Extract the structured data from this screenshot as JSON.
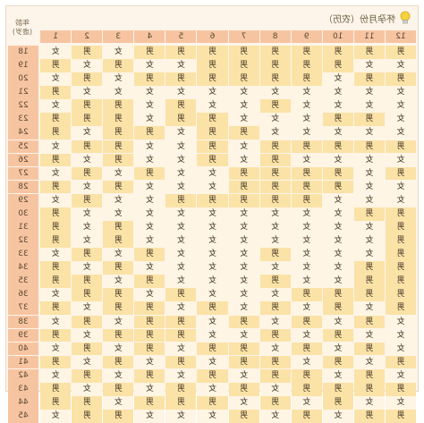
{
  "header": {
    "title": "怀孕月份（农历）",
    "age_header_line1": "年龄",
    "age_header_line2": "(虚岁)"
  },
  "months": [
    "1",
    "2",
    "3",
    "4",
    "5",
    "6",
    "7",
    "8",
    "9",
    "10",
    "11",
    "12"
  ],
  "labels": {
    "male": "男",
    "female": "女"
  },
  "colors": {
    "month_header": "#f7c4a1",
    "male_cell": "#fbe2a6",
    "female_cell": "#fff5e4",
    "background": "#fdf5ea"
  },
  "rows": [
    {
      "age": "18",
      "cells": [
        "女",
        "男",
        "女",
        "男",
        "男",
        "男",
        "男",
        "男",
        "男",
        "男",
        "男",
        "男"
      ]
    },
    {
      "age": "19",
      "cells": [
        "男",
        "女",
        "男",
        "女",
        "女",
        "男",
        "男",
        "男",
        "男",
        "男",
        "女",
        "女"
      ]
    },
    {
      "age": "20",
      "cells": [
        "女",
        "男",
        "女",
        "男",
        "男",
        "男",
        "男",
        "男",
        "男",
        "女",
        "男",
        "男"
      ]
    },
    {
      "age": "21",
      "cells": [
        "男",
        "女",
        "女",
        "女",
        "女",
        "女",
        "女",
        "女",
        "女",
        "女",
        "女",
        "女"
      ]
    },
    {
      "age": "22",
      "cells": [
        "女",
        "男",
        "男",
        "女",
        "男",
        "女",
        "女",
        "男",
        "女",
        "女",
        "女",
        "女"
      ]
    },
    {
      "age": "23",
      "cells": [
        "男",
        "男",
        "男",
        "女",
        "男",
        "男",
        "女",
        "女",
        "女",
        "男",
        "男",
        "女"
      ]
    },
    {
      "age": "24",
      "cells": [
        "男",
        "女",
        "男",
        "男",
        "女",
        "男",
        "男",
        "女",
        "女",
        "女",
        "女",
        "女"
      ]
    },
    {
      "age": "25",
      "cells": [
        "女",
        "男",
        "男",
        "女",
        "女",
        "男",
        "女",
        "男",
        "男",
        "男",
        "男",
        "男"
      ]
    },
    {
      "age": "26",
      "cells": [
        "男",
        "女",
        "男",
        "女",
        "女",
        "男",
        "女",
        "男",
        "女",
        "女",
        "女",
        "女"
      ]
    },
    {
      "age": "27",
      "cells": [
        "女",
        "男",
        "女",
        "男",
        "女",
        "女",
        "男",
        "男",
        "男",
        "男",
        "女",
        "男"
      ]
    },
    {
      "age": "28",
      "cells": [
        "男",
        "女",
        "男",
        "女",
        "女",
        "女",
        "男",
        "男",
        "男",
        "男",
        "女",
        "女"
      ]
    },
    {
      "age": "29",
      "cells": [
        "女",
        "男",
        "女",
        "女",
        "男",
        "男",
        "男",
        "男",
        "男",
        "女",
        "女",
        "女"
      ]
    },
    {
      "age": "30",
      "cells": [
        "男",
        "女",
        "女",
        "女",
        "女",
        "女",
        "女",
        "女",
        "女",
        "女",
        "男",
        "男"
      ]
    },
    {
      "age": "31",
      "cells": [
        "男",
        "女",
        "男",
        "女",
        "女",
        "女",
        "女",
        "女",
        "女",
        "女",
        "女",
        "男"
      ]
    },
    {
      "age": "32",
      "cells": [
        "男",
        "女",
        "男",
        "女",
        "女",
        "女",
        "女",
        "女",
        "女",
        "女",
        "女",
        "男"
      ]
    },
    {
      "age": "33",
      "cells": [
        "女",
        "男",
        "女",
        "男",
        "女",
        "女",
        "女",
        "男",
        "女",
        "女",
        "女",
        "男"
      ]
    },
    {
      "age": "34",
      "cells": [
        "男",
        "女",
        "男",
        "女",
        "女",
        "女",
        "女",
        "女",
        "女",
        "女",
        "男",
        "男"
      ]
    },
    {
      "age": "35",
      "cells": [
        "男",
        "男",
        "女",
        "男",
        "女",
        "女",
        "女",
        "男",
        "女",
        "女",
        "男",
        "男"
      ]
    },
    {
      "age": "36",
      "cells": [
        "女",
        "男",
        "男",
        "女",
        "男",
        "女",
        "女",
        "女",
        "男",
        "男",
        "男",
        "男"
      ]
    },
    {
      "age": "37",
      "cells": [
        "男",
        "女",
        "男",
        "男",
        "女",
        "男",
        "女",
        "男",
        "女",
        "男",
        "女",
        "男"
      ]
    },
    {
      "age": "38",
      "cells": [
        "女",
        "男",
        "女",
        "男",
        "男",
        "女",
        "男",
        "女",
        "男",
        "女",
        "男",
        "女"
      ]
    },
    {
      "age": "39",
      "cells": [
        "男",
        "女",
        "男",
        "男",
        "男",
        "女",
        "女",
        "男",
        "女",
        "男",
        "女",
        "女"
      ]
    },
    {
      "age": "40",
      "cells": [
        "女",
        "男",
        "女",
        "男",
        "女",
        "男",
        "男",
        "女",
        "男",
        "女",
        "男",
        "女"
      ]
    },
    {
      "age": "41",
      "cells": [
        "男",
        "女",
        "男",
        "女",
        "男",
        "女",
        "男",
        "男",
        "女",
        "男",
        "女",
        "男"
      ]
    },
    {
      "age": "42",
      "cells": [
        "女",
        "男",
        "女",
        "男",
        "女",
        "男",
        "女",
        "男",
        "男",
        "女",
        "男",
        "女"
      ]
    },
    {
      "age": "43",
      "cells": [
        "男",
        "女",
        "男",
        "女",
        "男",
        "女",
        "男",
        "女",
        "男",
        "男",
        "男",
        "男"
      ]
    },
    {
      "age": "44",
      "cells": [
        "男",
        "男",
        "女",
        "男",
        "男",
        "男",
        "女",
        "男",
        "女",
        "男",
        "女",
        "女"
      ]
    },
    {
      "age": "45",
      "cells": [
        "女",
        "男",
        "男",
        "女",
        "女",
        "女",
        "男",
        "女",
        "男",
        "女",
        "男",
        "男"
      ]
    }
  ]
}
